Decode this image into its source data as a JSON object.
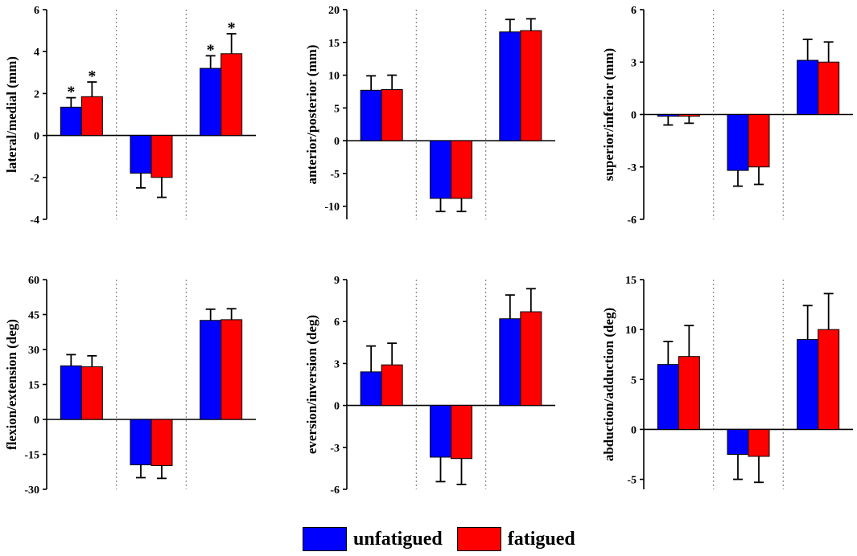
{
  "colors": {
    "unfatigued": "#0000ff",
    "fatigued": "#ff0000"
  },
  "legend": {
    "unfatigued_label": "unfatigued",
    "fatigued_label": "fatigued"
  },
  "chart_data": [
    {
      "type": "bar",
      "ylabel": "lateral/medial (mm)",
      "ylim": [
        -4,
        6
      ],
      "yticks": [
        -4,
        -2,
        0,
        2,
        4,
        6
      ],
      "tick_labels": [
        "-4",
        "-2",
        "0",
        "2",
        "4",
        "6"
      ],
      "groups": 3,
      "series": [
        {
          "name": "unfatigued",
          "values": [
            1.35,
            -1.8,
            3.2
          ],
          "errors": [
            0.45,
            0.7,
            0.6
          ],
          "significant": [
            true,
            false,
            true
          ]
        },
        {
          "name": "fatigued",
          "values": [
            1.85,
            -2.0,
            3.9
          ],
          "errors": [
            0.7,
            0.95,
            0.95
          ],
          "significant": [
            true,
            false,
            true
          ]
        }
      ],
      "significance_marker": "*"
    },
    {
      "type": "bar",
      "ylabel": "anterior/posterior (mm)",
      "ylim": [
        -12,
        20
      ],
      "yticks": [
        -10,
        -5,
        0,
        5,
        10,
        15,
        20
      ],
      "tick_labels": [
        "-10",
        "-5",
        "0",
        "5",
        "10",
        "15",
        "20"
      ],
      "groups": 3,
      "series": [
        {
          "name": "unfatigued",
          "values": [
            7.7,
            -8.8,
            16.6
          ],
          "errors": [
            2.2,
            2.0,
            1.9
          ]
        },
        {
          "name": "fatigued",
          "values": [
            7.8,
            -8.8,
            16.8
          ],
          "errors": [
            2.2,
            2.0,
            1.8
          ]
        }
      ]
    },
    {
      "type": "bar",
      "ylabel": "superior/inferior (mm)",
      "ylim": [
        -6,
        6
      ],
      "yticks": [
        -6,
        -3,
        0,
        3,
        6
      ],
      "tick_labels": [
        "-6",
        "-3",
        "0",
        "3",
        "6"
      ],
      "groups": 3,
      "series": [
        {
          "name": "unfatigued",
          "values": [
            -0.1,
            -3.2,
            3.1
          ],
          "errors": [
            0.5,
            0.9,
            1.2
          ]
        },
        {
          "name": "fatigued",
          "values": [
            -0.1,
            -3.0,
            3.0
          ],
          "errors": [
            0.4,
            1.0,
            1.15
          ]
        }
      ]
    },
    {
      "type": "bar",
      "ylabel": "flexion/extension (deg)",
      "ylim": [
        -30,
        60
      ],
      "yticks": [
        -30,
        -15,
        0,
        15,
        30,
        45,
        60
      ],
      "tick_labels": [
        "-30",
        "-15",
        "0",
        "15",
        "30",
        "45",
        "60"
      ],
      "groups": 3,
      "series": [
        {
          "name": "unfatigued",
          "values": [
            23.0,
            -19.5,
            42.5
          ],
          "errors": [
            4.8,
            5.5,
            4.8
          ]
        },
        {
          "name": "fatigued",
          "values": [
            22.6,
            -19.8,
            42.8
          ],
          "errors": [
            4.7,
            5.5,
            4.7
          ]
        }
      ]
    },
    {
      "type": "bar",
      "ylabel": "eversion/inversion (deg)",
      "ylim": [
        -6,
        9
      ],
      "yticks": [
        -6,
        -3,
        0,
        3,
        6,
        9
      ],
      "tick_labels": [
        "-6",
        "-3",
        "0",
        "3",
        "6",
        "9"
      ],
      "groups": 3,
      "series": [
        {
          "name": "unfatigued",
          "values": [
            2.4,
            -3.7,
            6.2
          ],
          "errors": [
            1.85,
            1.75,
            1.7
          ]
        },
        {
          "name": "fatigued",
          "values": [
            2.9,
            -3.8,
            6.7
          ],
          "errors": [
            1.55,
            1.85,
            1.65
          ]
        }
      ]
    },
    {
      "type": "bar",
      "ylabel": "abduction/adduction (deg)",
      "ylim": [
        -6,
        15
      ],
      "yticks": [
        -5,
        0,
        5,
        10,
        15
      ],
      "tick_labels": [
        "-5",
        "0",
        "5",
        "10",
        "15"
      ],
      "groups": 3,
      "series": [
        {
          "name": "unfatigued",
          "values": [
            6.5,
            -2.5,
            9.0
          ],
          "errors": [
            2.3,
            2.5,
            3.4
          ]
        },
        {
          "name": "fatigued",
          "values": [
            7.3,
            -2.7,
            10.0
          ],
          "errors": [
            3.1,
            2.6,
            3.6
          ]
        }
      ]
    }
  ]
}
